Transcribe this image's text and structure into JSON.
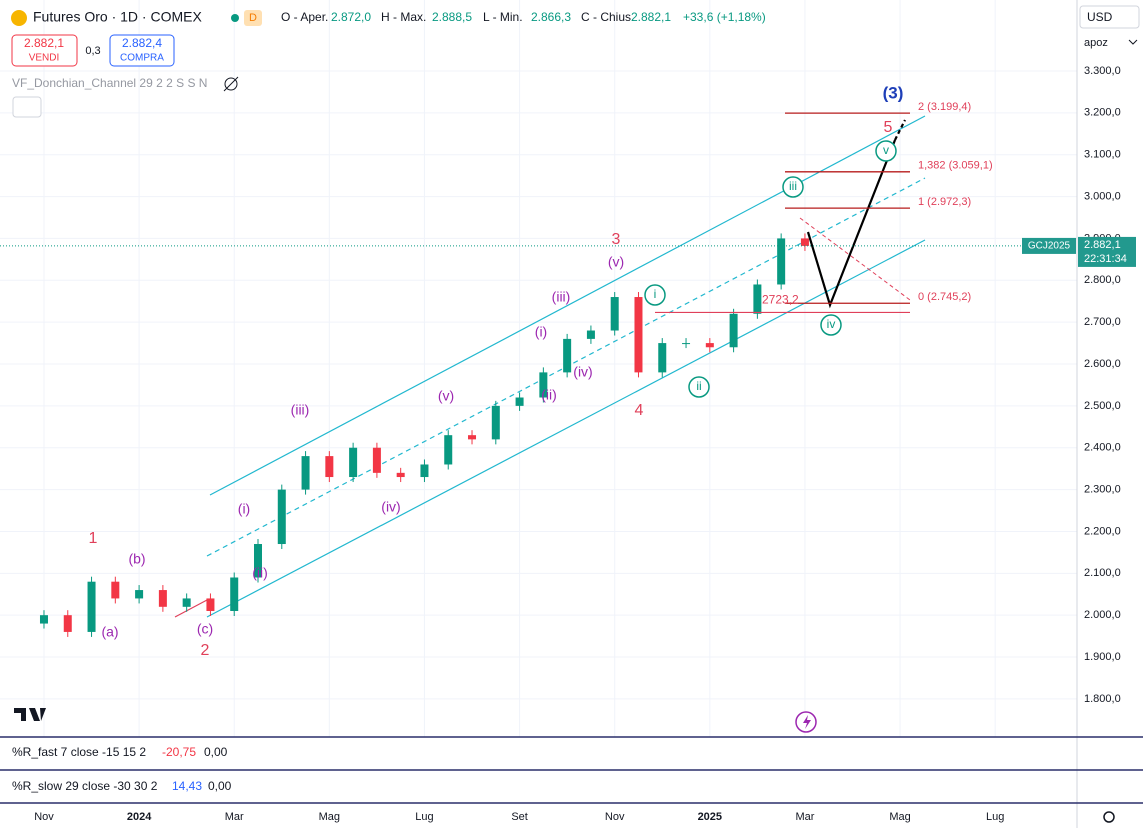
{
  "header": {
    "symbol": "Futures Oro · 1D · COMEX",
    "badge": "D",
    "ohlc": [
      {
        "label": "O - Aper.",
        "value": "2.872,0"
      },
      {
        "label": "H - Max.",
        "value": "2.888,5"
      },
      {
        "label": "L - Min.",
        "value": "2.866,3"
      },
      {
        "label": "C - Chius.",
        "value": "2.882,1"
      }
    ],
    "change": "+33,6 (+1,18%)"
  },
  "trade": {
    "sell_price": "2.882,1",
    "sell": "VENDI",
    "spread": "0,3",
    "buy_price": "2.882,4",
    "buy": "COMPRA"
  },
  "indicator": "VF_Donchian_Channel 29 2 2 S S N",
  "axis": {
    "currency": "USD",
    "mode": "apoz"
  },
  "price_tag": {
    "symbol": "GCJ2025",
    "countdown": "22:31:34"
  },
  "panes": [
    {
      "title": "%R_fast 7 close -15 15 2",
      "value": "-20,75",
      "value2": "0,00"
    },
    {
      "title": "%R_slow 29 close -30 30 2",
      "value": "14,43",
      "value2": "0,00"
    }
  ],
  "chart_data": {
    "type": "candle",
    "categories": [
      null,
      "Nov",
      null,
      null,
      null,
      "2024",
      null,
      null,
      null,
      "Mar",
      null,
      null,
      null,
      "Mag",
      null,
      null,
      null,
      "Lug",
      null,
      null,
      null,
      "Set",
      null,
      null,
      null,
      "Nov",
      null,
      null,
      null,
      "2025",
      null,
      null,
      null,
      "Mar",
      null,
      null,
      null,
      "Mag",
      null,
      null,
      null,
      "Lug",
      null,
      null,
      null
    ],
    "values": [
      1980,
      2000,
      1960,
      2080,
      2040,
      2060,
      2020,
      2040,
      2010,
      2090,
      2170,
      2300,
      2380,
      2330,
      2400,
      2340,
      2330,
      2360,
      2430,
      2420,
      2500,
      2520,
      2580,
      2660,
      2680,
      2760,
      2580,
      2650,
      2650,
      2640,
      2720,
      2790,
      2900,
      2882.1,
      null,
      null,
      null,
      null,
      null,
      null,
      null,
      null,
      null,
      null,
      null
    ],
    "up_color": "#089981",
    "down_color": "#f23645",
    "ylim": [
      1709,
      3460
    ],
    "yticks": [
      {
        "value": 1800,
        "label": "1.800,0"
      },
      {
        "value": 1900,
        "label": "1.900,0"
      },
      {
        "value": 2000,
        "label": "2.000,0"
      },
      {
        "value": 2100,
        "label": "2.100,0"
      },
      {
        "value": 2200,
        "label": "2.200,0"
      },
      {
        "value": 2300,
        "label": "2.300,0"
      },
      {
        "value": 2400,
        "label": "2.400,0"
      },
      {
        "value": 2500,
        "label": "2.500,0"
      },
      {
        "value": 2600,
        "label": "2.600,0"
      },
      {
        "value": 2700,
        "label": "2.700,0"
      },
      {
        "value": 2800,
        "label": "2.800,0"
      },
      {
        "value": 2900,
        "label": "2.900,0"
      },
      {
        "value": 3000,
        "label": "3.000,0"
      },
      {
        "value": 3100,
        "label": "3.100,0"
      },
      {
        "value": 3200,
        "label": "3.200,0"
      },
      {
        "value": 3300,
        "label": "3.300,0"
      }
    ],
    "last_price": {
      "value": 2882.1,
      "label": "2.882,1"
    },
    "fib_levels": [
      {
        "value": 3199.4,
        "label": "2 (3.199,4)"
      },
      {
        "value": 3059.1,
        "label": "1,382 (3.059,1)"
      },
      {
        "value": 2972.3,
        "label": "1 (2.972,3)"
      },
      {
        "value": 2745.2,
        "label": "0 (2.745,2)"
      }
    ],
    "level": {
      "value": 2723.2,
      "label": "2723,2"
    },
    "grid": true,
    "annotations": [
      {
        "text": "(3)",
        "style": "blue"
      },
      {
        "text": "5",
        "style": "red"
      },
      {
        "text": "v",
        "style": "circle"
      },
      {
        "text": "iii",
        "style": "circle"
      },
      {
        "text": "3",
        "style": "red"
      },
      {
        "text": "(v)",
        "style": "purple"
      },
      {
        "text": "(iii)",
        "style": "purple"
      },
      {
        "text": "i",
        "style": "circle"
      },
      {
        "text": "iv",
        "style": "circle"
      },
      {
        "text": "(i)",
        "style": "purple"
      },
      {
        "text": "(iv)",
        "style": "purple"
      },
      {
        "text": "ii",
        "style": "circle"
      },
      {
        "text": "(ii)",
        "style": "purple"
      },
      {
        "text": "4",
        "style": "red"
      },
      {
        "text": "(iii)",
        "style": "purple"
      },
      {
        "text": "(v)",
        "style": "purple"
      },
      {
        "text": "(iv)",
        "style": "purple"
      },
      {
        "text": "(i)",
        "style": "purple"
      },
      {
        "text": "(ii)",
        "style": "purple"
      },
      {
        "text": "1",
        "style": "red"
      },
      {
        "text": "(b)",
        "style": "purple"
      },
      {
        "text": "(a)",
        "style": "purple"
      },
      {
        "text": "(c)",
        "style": "purple"
      },
      {
        "text": "2",
        "style": "red"
      }
    ]
  }
}
